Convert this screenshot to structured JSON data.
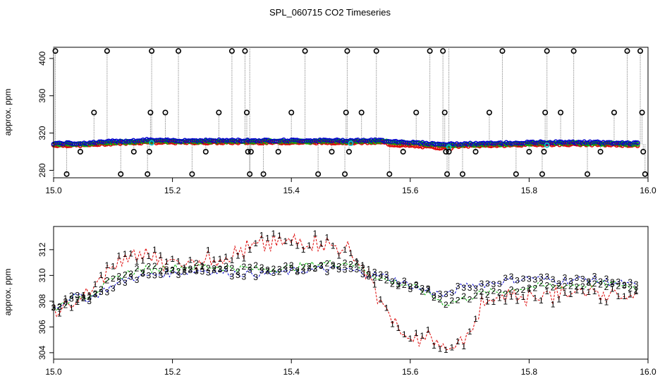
{
  "title": "SPL_060715  CO2 Timeseries",
  "colors": {
    "s1": "#dd0000",
    "s2": "#00b400",
    "s3": "#0000cc",
    "outlier": "#000000",
    "cyan": "#00cccc",
    "spike": "#999999"
  },
  "chart_data": [
    {
      "type": "scatter",
      "name": "raw-timeseries",
      "xlabel": "",
      "ylabel": "approx. ppm",
      "xlim": [
        15.0,
        16.0
      ],
      "ylim": [
        272,
        412
      ],
      "xticks": [
        15.0,
        15.2,
        15.4,
        15.6,
        15.8,
        16.0
      ],
      "xtick_labels": [
        "15.0",
        "15.2",
        "15.4",
        "15.6",
        "15.8",
        "16.0"
      ],
      "yticks": [
        280,
        320,
        360,
        400
      ],
      "ytick_labels": [
        "280",
        "320",
        "360",
        "400"
      ],
      "baseline": {
        "x": [
          15.0,
          15.05,
          15.1,
          15.15,
          15.16,
          15.17,
          15.25,
          15.3,
          15.33,
          15.35,
          15.4,
          15.45,
          15.49,
          15.5,
          15.55,
          15.6,
          15.65,
          15.66,
          15.67,
          15.75,
          15.82,
          15.83,
          15.9,
          15.98
        ],
        "y": [
          308,
          308,
          310,
          311,
          312,
          311,
          311,
          311,
          311,
          311,
          311,
          311,
          311,
          311,
          311,
          309,
          307,
          307,
          307,
          308,
          309,
          309,
          309,
          308
        ]
      },
      "outliers": {
        "x": [
          15.003,
          15.022,
          15.045,
          15.068,
          15.09,
          15.113,
          15.135,
          15.158,
          15.161,
          15.163,
          15.165,
          15.188,
          15.21,
          15.233,
          15.256,
          15.278,
          15.3,
          15.322,
          15.325,
          15.327,
          15.33,
          15.332,
          15.353,
          15.378,
          15.4,
          15.423,
          15.445,
          15.468,
          15.49,
          15.492,
          15.494,
          15.497,
          15.518,
          15.543,
          15.565,
          15.588,
          15.61,
          15.633,
          15.655,
          15.658,
          15.66,
          15.662,
          15.665,
          15.688,
          15.71,
          15.733,
          15.755,
          15.778,
          15.8,
          15.822,
          15.825,
          15.827,
          15.83,
          15.853,
          15.875,
          15.898,
          15.92,
          15.943,
          15.965,
          15.987,
          15.99,
          15.992,
          15.995
        ],
        "y": [
          408,
          276,
          300,
          342,
          408,
          276,
          300,
          276,
          300,
          342,
          408,
          342,
          408,
          276,
          300,
          342,
          408,
          408,
          342,
          300,
          276,
          300,
          276,
          300,
          342,
          408,
          276,
          300,
          276,
          342,
          408,
          300,
          342,
          408,
          276,
          300,
          342,
          408,
          408,
          342,
          300,
          276,
          300,
          276,
          300,
          342,
          408,
          276,
          300,
          276,
          300,
          342,
          408,
          342,
          408,
          276,
          300,
          342,
          408,
          408,
          342,
          300,
          276
        ]
      }
    },
    {
      "type": "line",
      "name": "smoothed-series",
      "xlabel": "",
      "ylabel": "approx. ppm",
      "xlim": [
        15.0,
        16.0
      ],
      "ylim": [
        303.5,
        313.8
      ],
      "xticks": [
        15.0,
        15.2,
        15.4,
        15.6,
        15.8,
        16.0
      ],
      "xtick_labels": [
        "15.0",
        "15.2",
        "15.4",
        "15.6",
        "15.8",
        "16.0"
      ],
      "yticks": [
        304,
        306,
        308,
        310,
        312
      ],
      "ytick_labels": [
        "304",
        "306",
        "308",
        "310",
        "312"
      ],
      "series": [
        {
          "name": "1",
          "marker": "1",
          "x": [
            15.0,
            15.03,
            15.06,
            15.1,
            15.13,
            15.16,
            15.2,
            15.25,
            15.3,
            15.35,
            15.4,
            15.45,
            15.5,
            15.53,
            15.56,
            15.6,
            15.63,
            15.66,
            15.69,
            15.72,
            15.76,
            15.8,
            15.85,
            15.9,
            15.95,
            15.99
          ],
          "y": [
            307.0,
            307.8,
            308.6,
            310.8,
            311.4,
            311.6,
            311.0,
            311.2,
            311.6,
            312.4,
            312.6,
            312.6,
            311.8,
            310.0,
            307.0,
            304.8,
            305.2,
            304.2,
            305.0,
            307.6,
            308.2,
            308.4,
            308.6,
            308.9,
            308.6,
            308.3
          ]
        },
        {
          "name": "2",
          "marker": "2",
          "x": [
            15.0,
            15.03,
            15.06,
            15.1,
            15.13,
            15.16,
            15.2,
            15.25,
            15.3,
            15.35,
            15.4,
            15.45,
            15.5,
            15.53,
            15.56,
            15.6,
            15.63,
            15.66,
            15.69,
            15.72,
            15.76,
            15.8,
            15.85,
            15.9,
            15.95,
            15.99
          ],
          "y": [
            307.4,
            308.2,
            308.5,
            309.6,
            310.3,
            310.5,
            310.6,
            310.7,
            310.6,
            310.5,
            310.6,
            310.9,
            311.0,
            310.2,
            309.6,
            309.2,
            308.6,
            307.8,
            308.2,
            308.6,
            308.8,
            309.1,
            309.2,
            309.3,
            309.3,
            309.0
          ]
        },
        {
          "name": "3",
          "marker": "3",
          "x": [
            15.0,
            15.03,
            15.06,
            15.1,
            15.13,
            15.16,
            15.2,
            15.25,
            15.3,
            15.35,
            15.4,
            15.45,
            15.5,
            15.53,
            15.56,
            15.6,
            15.63,
            15.66,
            15.69,
            15.72,
            15.76,
            15.8,
            15.85,
            15.9,
            15.95,
            15.99
          ],
          "y": [
            307.4,
            308.4,
            308.2,
            309.2,
            309.8,
            310.0,
            310.2,
            310.4,
            310.2,
            310.1,
            310.3,
            310.5,
            310.4,
            310.1,
            309.9,
            309.2,
            308.8,
            308.4,
            309.2,
            309.3,
            309.6,
            309.8,
            309.6,
            309.7,
            309.4,
            309.1
          ]
        }
      ]
    }
  ]
}
